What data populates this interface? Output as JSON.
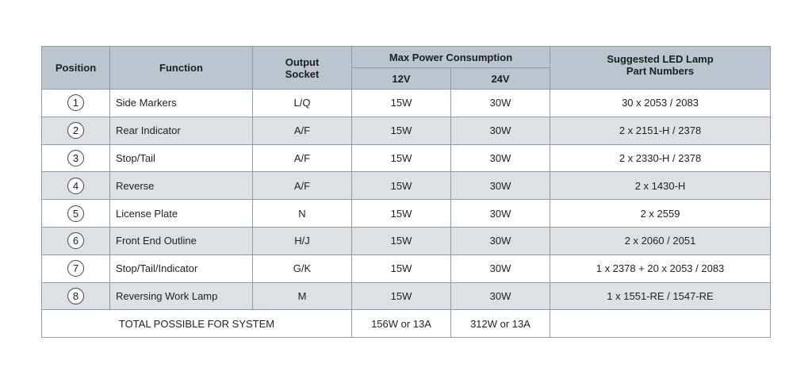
{
  "header": {
    "position": "Position",
    "function": "Function",
    "output_socket": "Output Socket",
    "max_power": "Max Power Consumption",
    "v12": "12V",
    "v24": "24V",
    "led_parts": "Suggested LED Lamp Part Numbers"
  },
  "table": {
    "rows": [
      [
        1,
        "Side Markers",
        "L/Q",
        "15W",
        "30W",
        "30 x 2053 / 2083"
      ],
      [
        2,
        "Rear Indicator",
        "A/F",
        "15W",
        "30W",
        "2 x 2151-H / 2378"
      ],
      [
        3,
        "Stop/Tail",
        "A/F",
        "15W",
        "30W",
        "2 x 2330-H / 2378"
      ],
      [
        4,
        "Reverse",
        "A/F",
        "15W",
        "30W",
        "2 x 1430-H"
      ],
      [
        5,
        "License Plate",
        "N",
        "15W",
        "30W",
        "2 x 2559"
      ],
      [
        6,
        "Front End Outline",
        "H/J",
        "15W",
        "30W",
        "2 x 2060 / 2051"
      ],
      [
        7,
        "Stop/Tail/Indicator",
        "G/K",
        "15W",
        "30W",
        "1 x 2378 + 20 x 2053 / 2083"
      ],
      [
        8,
        "Reversing Work Lamp",
        "M",
        "15W",
        "30W",
        "1 x 1551-RE / 1547-RE"
      ]
    ],
    "total": {
      "label": "TOTAL POSSIBLE FOR SYSTEM",
      "v12": "156W or 13A",
      "v24": "312W or 13A"
    }
  }
}
